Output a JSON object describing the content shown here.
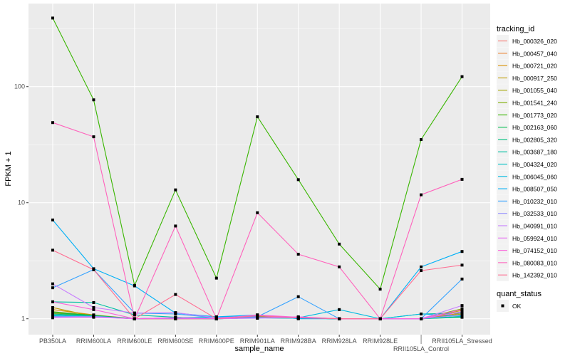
{
  "chart_data": {
    "type": "line",
    "xlabel": "sample_name",
    "ylabel": "FPKM + 1",
    "y_scale": "log10",
    "ylim": [
      0.73,
      520
    ],
    "y_ticks": [
      1,
      10,
      100
    ],
    "y_tick_labels": [
      "1",
      "10",
      "100"
    ],
    "grid": true,
    "legend_placement": "right",
    "categories": [
      "PB350LA",
      "RRIM600LA",
      "RRIM600LE",
      "RRIM600SE",
      "RRIM600PE",
      "RRIM901LA",
      "RRIM928BA",
      "RRIM928LA",
      "RRIM928LE",
      "RRII105LA_Control",
      "RRII105LA_Stressed"
    ],
    "color_legend_title": "tracking_id",
    "shape_legend_title": "quant_status",
    "shape_legend_items": [
      "OK"
    ],
    "series": [
      {
        "name": "Hb_000326_020",
        "color": "#F8766D",
        "values": [
          1.05,
          1.04,
          1,
          1,
          1,
          1.02,
          1.01,
          1,
          1,
          1,
          1.05
        ]
      },
      {
        "name": "Hb_000457_040",
        "color": "#EA8331",
        "values": [
          1.1,
          1.06,
          1,
          1.01,
          1,
          1.05,
          1.02,
          1,
          1,
          1,
          1.12
        ]
      },
      {
        "name": "Hb_000721_020",
        "color": "#D89000",
        "values": [
          1.2,
          1.08,
          1,
          1.01,
          1,
          1.06,
          1.03,
          1,
          1,
          1,
          1.15
        ]
      },
      {
        "name": "Hb_000917_250",
        "color": "#C09B00",
        "values": [
          1.25,
          1.05,
          1,
          1,
          1,
          1.04,
          1.02,
          1,
          1,
          1,
          1.18
        ]
      },
      {
        "name": "Hb_001055_040",
        "color": "#A3A500",
        "values": [
          1.12,
          1.06,
          1,
          1,
          1,
          1.03,
          1.01,
          1,
          1,
          1,
          1.1
        ]
      },
      {
        "name": "Hb_001541_240",
        "color": "#7CAE00",
        "values": [
          1.15,
          1.07,
          1,
          1.01,
          1,
          1.04,
          1.01,
          1,
          1,
          1,
          1.22
        ]
      },
      {
        "name": "Hb_001773_020",
        "color": "#39B600",
        "values": [
          390,
          77,
          1.94,
          12.9,
          2.24,
          55,
          15.8,
          4.4,
          1.8,
          35,
          122
        ]
      },
      {
        "name": "Hb_002163_060",
        "color": "#00BB4E",
        "values": [
          1.13,
          1.07,
          1,
          1.01,
          1,
          1.02,
          1.01,
          1,
          1,
          1,
          1.03
        ]
      },
      {
        "name": "Hb_002805_320",
        "color": "#00BF7D",
        "values": [
          1.1,
          1.06,
          1,
          1.01,
          1,
          1.02,
          1.01,
          1,
          1,
          1,
          1.04
        ]
      },
      {
        "name": "Hb_003687_180",
        "color": "#00C1A3",
        "values": [
          1.4,
          1.38,
          1.08,
          1.03,
          1,
          1.02,
          1.01,
          1,
          1,
          1.1,
          1.12
        ]
      },
      {
        "name": "Hb_004324_020",
        "color": "#00BFC4",
        "values": [
          1.08,
          1.05,
          1,
          1.02,
          1,
          1.03,
          1.01,
          1,
          1,
          1,
          1.05
        ]
      },
      {
        "name": "Hb_006045_060",
        "color": "#00BAE0",
        "values": [
          1.06,
          1.04,
          1,
          1.02,
          1.03,
          1.06,
          1.02,
          1.2,
          1,
          1.1,
          1.06
        ]
      },
      {
        "name": "Hb_008507_050",
        "color": "#00B0F6",
        "values": [
          7.1,
          2.7,
          1.92,
          1.12,
          1.04,
          1.08,
          1.0,
          1.0,
          1.0,
          2.8,
          3.8
        ]
      },
      {
        "name": "Hb_010232_010",
        "color": "#35A2FF",
        "values": [
          1.85,
          2.65,
          1.12,
          1.1,
          1.02,
          1.04,
          1.55,
          1,
          1,
          1,
          2.2
        ]
      },
      {
        "name": "Hb_032533_010",
        "color": "#9590FF",
        "values": [
          1.04,
          1.05,
          1,
          1.02,
          1,
          1.01,
          1.02,
          1,
          1,
          1,
          1.08
        ]
      },
      {
        "name": "Hb_040991_010",
        "color": "#C77CFF",
        "values": [
          2.0,
          1.25,
          1.12,
          1.13,
          1.02,
          1.06,
          1.03,
          1,
          1,
          1,
          1.3
        ]
      },
      {
        "name": "Hb_059924_010",
        "color": "#E76BF3",
        "values": [
          1.02,
          1.03,
          1,
          1,
          1,
          1.02,
          1.04,
          1,
          1,
          1,
          1.15
        ]
      },
      {
        "name": "Hb_074152_010",
        "color": "#FA62DB",
        "values": [
          1.4,
          1.2,
          1.0,
          1.02,
          1,
          1.08,
          1.03,
          1,
          1,
          1,
          1.2
        ]
      },
      {
        "name": "Hb_080083_010",
        "color": "#FF62BC",
        "values": [
          49,
          37,
          1,
          6.3,
          1,
          8.2,
          3.6,
          2.8,
          1,
          11.7,
          15.9
        ]
      },
      {
        "name": "Hb_142392_010",
        "color": "#FF6C91",
        "values": [
          3.9,
          2.65,
          1,
          1.62,
          1,
          1.06,
          1.02,
          1,
          1,
          2.6,
          2.9
        ]
      }
    ]
  }
}
